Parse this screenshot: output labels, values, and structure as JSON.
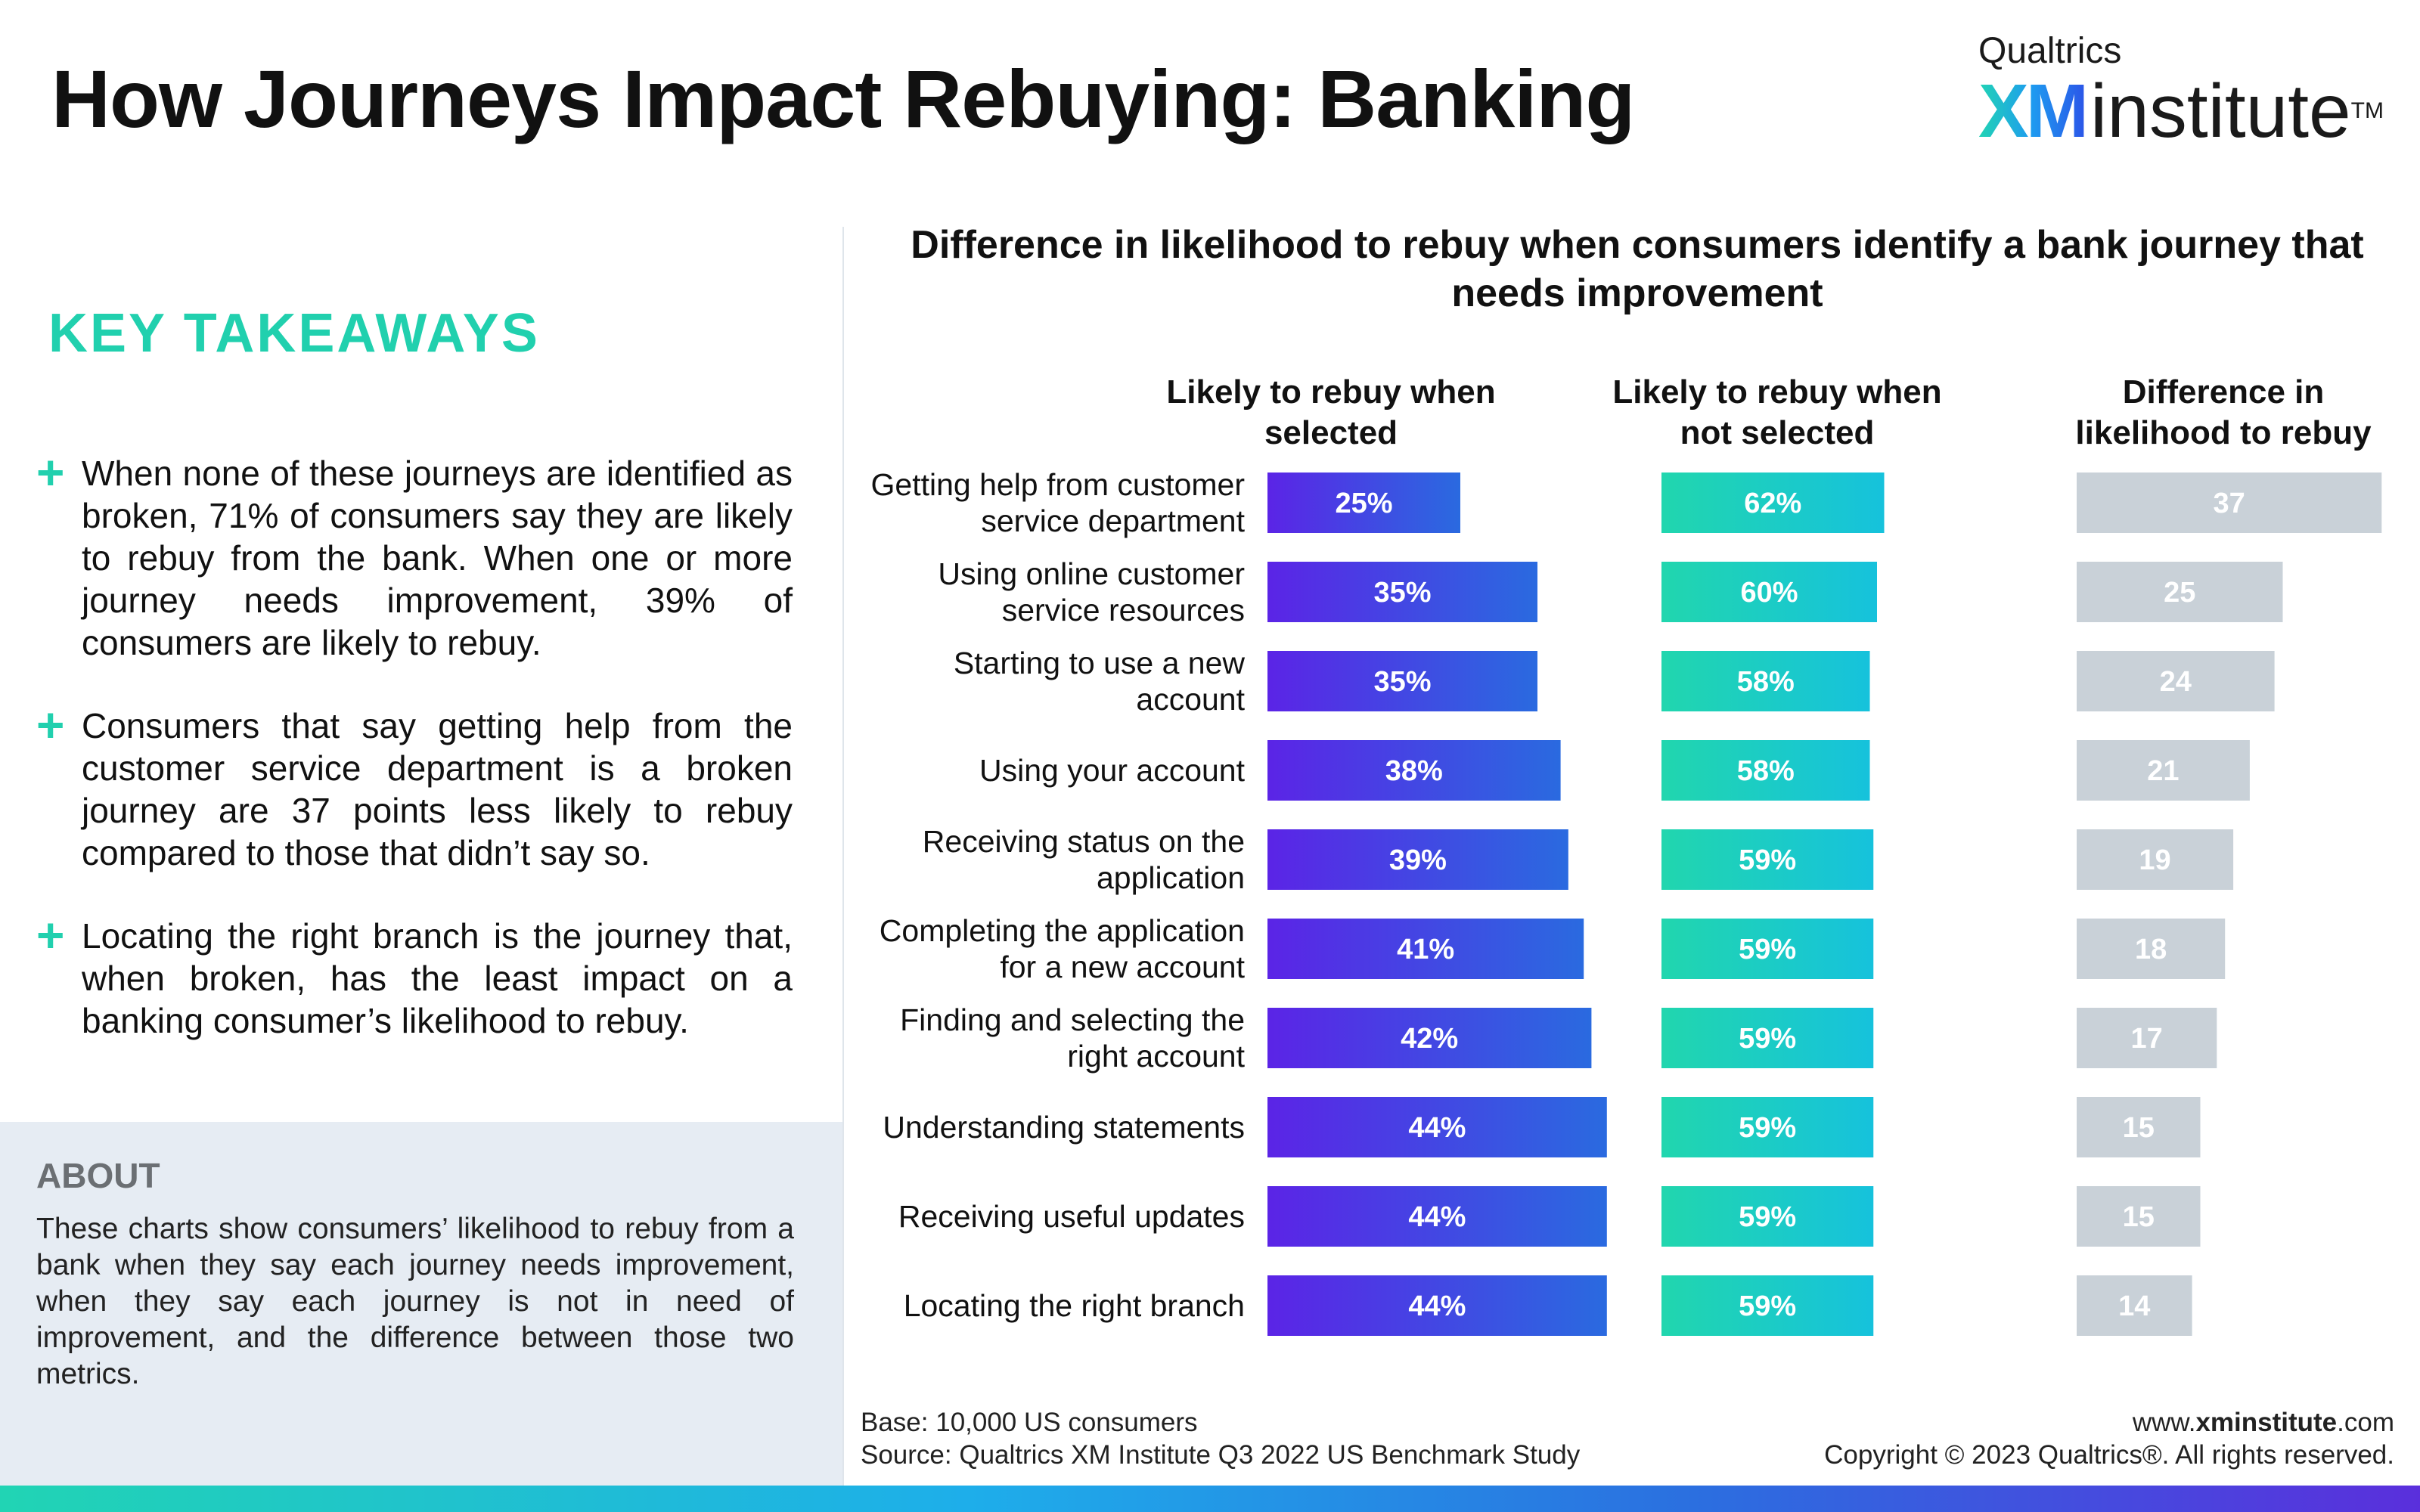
{
  "header": {
    "title": "How Journeys Impact Rebuying: Banking",
    "logo_top": "Qualtrics",
    "logo_xm": "XM",
    "logo_institute": "institute",
    "logo_tm": "TM"
  },
  "takeaways": {
    "heading": "KEY TAKEAWAYS",
    "items": [
      "When none of these journeys are identified as broken, 71% of consumers say they are likely to rebuy from the bank. When one or more journey needs improvement, 39% of consumers are likely to rebuy.",
      "Consumers that say getting help from the customer service department is a broken journey are 37 points less likely to rebuy compared to those that didn’t say so.",
      "Locating the right branch is the journey that, when broken, has the least impact on a banking consumer’s likelihood to rebuy."
    ]
  },
  "about": {
    "heading": "ABOUT",
    "text": "These charts show consumers’ likelihood to rebuy from a bank when they say each journey needs improvement, when they say each journey is not in need of improvement, and the difference between those two metrics."
  },
  "colors": {
    "selected_start": "#5b24e6",
    "selected_end": "#2a6ae0",
    "not_selected_start": "#21d6ae",
    "not_selected_end": "#16c2dc",
    "difference": "#c9d1d8",
    "accent": "#21d0ae"
  },
  "chart_data": {
    "type": "bar",
    "title": "Difference in likelihood to rebuy when consumers identify a bank journey that needs improvement",
    "categories": [
      "Getting help from customer service department",
      "Using online customer service resources",
      "Starting to use a new account",
      "Using your account",
      "Receiving status on the application",
      "Completing the application for a new account",
      "Finding and selecting the right account",
      "Understanding statements",
      "Receiving useful updates",
      "Locating the right branch"
    ],
    "category_lines": [
      [
        "Getting help from customer",
        "service department"
      ],
      [
        "Using online customer",
        "service resources"
      ],
      [
        "Starting to use a new",
        "account"
      ],
      [
        "Using your account"
      ],
      [
        "Receiving status on the",
        "application"
      ],
      [
        "Completing the application",
        "for a new account"
      ],
      [
        "Finding and selecting the",
        "right account"
      ],
      [
        "Understanding statements"
      ],
      [
        "Receiving useful updates"
      ],
      [
        "Locating the right branch"
      ]
    ],
    "series": [
      {
        "name": "Likely to rebuy when selected",
        "values": [
          25,
          35,
          35,
          38,
          39,
          41,
          42,
          44,
          44,
          44
        ],
        "labels": [
          "25%",
          "35%",
          "35%",
          "38%",
          "39%",
          "41%",
          "42%",
          "44%",
          "44%",
          "44%"
        ]
      },
      {
        "name": "Likely to rebuy when not selected",
        "values": [
          62,
          60,
          58,
          58,
          59,
          59,
          59,
          59,
          59,
          59
        ],
        "labels": [
          "62%",
          "60%",
          "58%",
          "58%",
          "59%",
          "59%",
          "59%",
          "59%",
          "59%",
          "59%"
        ]
      },
      {
        "name": "Difference in likelihood to rebuy",
        "values": [
          37,
          25,
          24,
          21,
          19,
          18,
          17,
          15,
          15,
          14
        ],
        "labels": [
          "37",
          "25",
          "24",
          "21",
          "19",
          "18",
          "17",
          "15",
          "15",
          "14"
        ]
      }
    ],
    "column_headers": [
      [
        "Likely to rebuy when",
        "selected"
      ],
      [
        "Likely to rebuy when",
        "not selected"
      ],
      [
        "Difference in",
        "likelihood to rebuy"
      ]
    ],
    "grid": false
  },
  "footer": {
    "base": "Base: 10,000 US consumers",
    "source": "Source: Qualtrics XM Institute Q3 2022 US Benchmark Study",
    "url_prefix": "www.",
    "url_bold": "xminstitute",
    "url_suffix": ".com",
    "copyright": "Copyright © 2023 Qualtrics®. All rights reserved."
  }
}
